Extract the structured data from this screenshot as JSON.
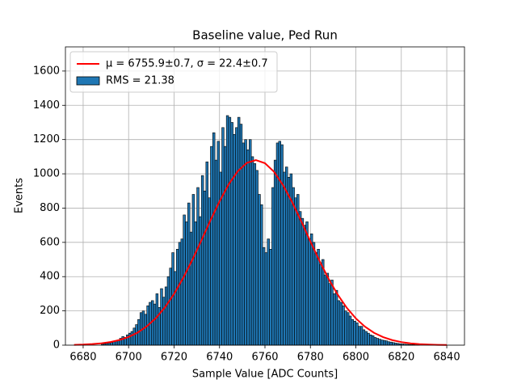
{
  "chart_data": {
    "type": "histogram",
    "title": "Baseline value, Ped Run",
    "xlabel": "Sample Value [ADC Counts]",
    "ylabel": "Events",
    "xlim": [
      6672.2,
      6847.8
    ],
    "ylim": [
      0,
      1741
    ],
    "xticks": [
      6680,
      6700,
      6720,
      6740,
      6760,
      6780,
      6800,
      6820,
      6840
    ],
    "yticks": [
      0,
      200,
      400,
      600,
      800,
      1000,
      1200,
      1400,
      1600
    ],
    "grid": true,
    "legend": "upper left",
    "bins": [
      6688,
      6689,
      6690,
      6691,
      6692,
      6693,
      6694,
      6695,
      6696,
      6697,
      6698,
      6699,
      6700,
      6701,
      6702,
      6703,
      6704,
      6705,
      6706,
      6707,
      6708,
      6709,
      6710,
      6711,
      6712,
      6713,
      6714,
      6715,
      6716,
      6717,
      6718,
      6719,
      6720,
      6721,
      6722,
      6723,
      6724,
      6725,
      6726,
      6727,
      6728,
      6729,
      6730,
      6731,
      6732,
      6733,
      6734,
      6735,
      6736,
      6737,
      6738,
      6739,
      6740,
      6741,
      6742,
      6743,
      6744,
      6745,
      6746,
      6747,
      6748,
      6749,
      6750,
      6751,
      6752,
      6753,
      6754,
      6755,
      6756,
      6757,
      6758,
      6759,
      6760,
      6761,
      6762,
      6763,
      6764,
      6765,
      6766,
      6767,
      6768,
      6769,
      6770,
      6771,
      6772,
      6773,
      6774,
      6775,
      6776,
      6777,
      6778,
      6779,
      6780,
      6781,
      6782,
      6783,
      6784,
      6785,
      6786,
      6787,
      6788,
      6789,
      6790,
      6791,
      6792,
      6793,
      6794,
      6795,
      6796,
      6797,
      6798,
      6799,
      6800,
      6801,
      6802,
      6803,
      6804,
      6805,
      6806,
      6807,
      6808,
      6809,
      6810,
      6811,
      6812,
      6813,
      6814,
      6815,
      6816,
      6817,
      6818,
      6819,
      6820,
      6821,
      6822,
      6823,
      6824,
      6825,
      6826,
      6827,
      6828
    ],
    "series": [
      {
        "name": "RMS = 21.38",
        "color": "#1f77b4",
        "edgecolor": "#000000",
        "values": [
          5,
          8,
          10,
          12,
          15,
          20,
          25,
          30,
          40,
          50,
          45,
          60,
          70,
          80,
          100,
          120,
          150,
          190,
          200,
          180,
          230,
          250,
          260,
          240,
          300,
          220,
          330,
          280,
          340,
          400,
          450,
          540,
          430,
          560,
          600,
          620,
          760,
          720,
          830,
          660,
          880,
          720,
          920,
          750,
          990,
          900,
          1070,
          860,
          1160,
          1240,
          1080,
          1190,
          1010,
          1270,
          1160,
          1340,
          1330,
          1300,
          1230,
          1270,
          1330,
          1290,
          1180,
          1200,
          1140,
          1200,
          1100,
          1060,
          1020,
          880,
          820,
          570,
          540,
          620,
          560,
          920,
          1080,
          1180,
          1190,
          1170,
          1010,
          1040,
          980,
          1000,
          920,
          860,
          880,
          780,
          740,
          700,
          720,
          620,
          650,
          600,
          540,
          560,
          470,
          500,
          410,
          420,
          360,
          380,
          300,
          320,
          260,
          250,
          230,
          200,
          190,
          170,
          150,
          140,
          130,
          110,
          110,
          90,
          80,
          70,
          60,
          55,
          45,
          40,
          35,
          30,
          28,
          25,
          20,
          18,
          15,
          12,
          10,
          8,
          7,
          6,
          5,
          4,
          3,
          3,
          2,
          2
        ]
      },
      {
        "name": "μ = 6755.9±0.7, σ = 22.4±0.7",
        "type": "line",
        "color": "#ff0000",
        "x": [
          6676,
          6680,
          6684,
          6688,
          6692,
          6696,
          6700,
          6704,
          6708,
          6712,
          6716,
          6720,
          6724,
          6728,
          6732,
          6736,
          6740,
          6744,
          6748,
          6752,
          6756,
          6760,
          6764,
          6768,
          6772,
          6776,
          6780,
          6784,
          6788,
          6792,
          6796,
          6800,
          6804,
          6808,
          6812,
          6816,
          6820,
          6824,
          6828,
          6832,
          6836,
          6840
        ],
        "values": [
          1.9,
          3.5,
          6.3,
          10.9,
          18.5,
          30.2,
          48,
          73.7,
          110,
          158,
          221,
          299,
          392,
          497,
          611,
          728,
          839,
          938,
          1015,
          1064,
          1080,
          1062,
          1012,
          933,
          834,
          722,
          605,
          492,
          387,
          295,
          218,
          156,
          108,
          72,
          47,
          29.5,
          18,
          10.6,
          6.1,
          3.4,
          1.8,
          0.9
        ]
      }
    ]
  }
}
